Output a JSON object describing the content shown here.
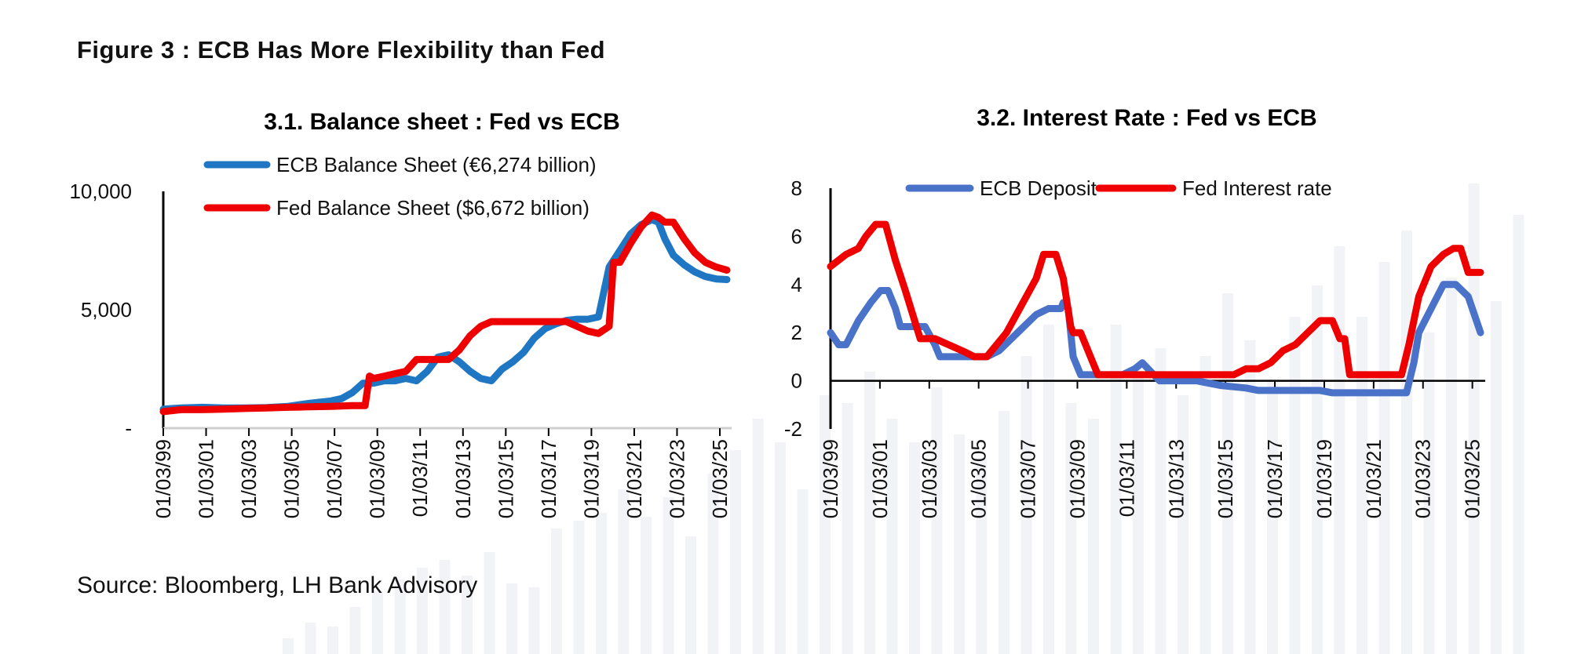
{
  "figure_title": "Figure 3 : ECB Has More Flexibility than Fed",
  "source": "Source: Bloomberg, LH Bank Advisory",
  "colors": {
    "ecb_balance": "#1f77c4",
    "fed": "#ee0000",
    "ecb_deposit": "#4a72c8",
    "watermark": "#f1f3f6"
  },
  "chart_data": [
    {
      "type": "line",
      "title": "3.1. Balance sheet  : Fed vs ECB",
      "x_ticks": [
        "01/03/99",
        "01/03/01",
        "01/03/03",
        "01/03/05",
        "01/03/07",
        "01/03/09",
        "01/03/11",
        "01/03/13",
        "01/03/15",
        "01/03/17",
        "01/03/19",
        "01/03/21",
        "01/03/23",
        "01/03/25"
      ],
      "y_ticks": [
        "10,000",
        "5,000",
        "-"
      ],
      "y_tick_values": [
        10000,
        5000,
        0
      ],
      "ylim": [
        0,
        10000
      ],
      "xlim": [
        1999.17,
        2025.5
      ],
      "legend_position": "top-left",
      "grid": false,
      "series": [
        {
          "name": "ECB Balance Sheet (€6,274 billion)",
          "color": "#1f77c4",
          "x": [
            1999.17,
            2000,
            2001,
            2002,
            2003,
            2004,
            2005,
            2006,
            2007,
            2007.5,
            2008,
            2008.5,
            2009,
            2009.5,
            2010,
            2010.5,
            2011,
            2011.5,
            2012,
            2012.5,
            2013,
            2013.5,
            2014,
            2014.5,
            2015,
            2015.5,
            2016,
            2016.5,
            2017,
            2017.5,
            2018,
            2018.5,
            2019,
            2019.5,
            2020,
            2020.5,
            2021,
            2021.5,
            2022,
            2022.3,
            2022.6,
            2023,
            2023.5,
            2024,
            2024.5,
            2025,
            2025.5
          ],
          "y": [
            800,
            850,
            880,
            850,
            850,
            870,
            920,
            1050,
            1150,
            1250,
            1500,
            1900,
            1900,
            2000,
            2000,
            2100,
            2000,
            2400,
            3000,
            3100,
            2800,
            2400,
            2100,
            2000,
            2500,
            2800,
            3200,
            3800,
            4200,
            4400,
            4550,
            4600,
            4600,
            4700,
            6800,
            7500,
            8200,
            8600,
            8800,
            8700,
            8000,
            7300,
            6900,
            6600,
            6400,
            6300,
            6274
          ]
        },
        {
          "name": "Fed Balance Sheet ($6,672 billion)",
          "color": "#ee0000",
          "x": [
            1999.17,
            2000,
            2001,
            2002,
            2003,
            2004,
            2005,
            2006,
            2007,
            2008,
            2008.6,
            2008.8,
            2009,
            2009.5,
            2010,
            2010.5,
            2011,
            2011.5,
            2012,
            2012.5,
            2013,
            2013.5,
            2014,
            2014.5,
            2015,
            2016,
            2017,
            2018,
            2019,
            2019.5,
            2020,
            2020.2,
            2020.5,
            2021,
            2021.5,
            2022,
            2022.3,
            2022.6,
            2023,
            2023.5,
            2024,
            2024.5,
            2025,
            2025.5
          ],
          "y": [
            700,
            780,
            780,
            800,
            830,
            850,
            880,
            900,
            920,
            950,
            950,
            2200,
            2100,
            2200,
            2300,
            2400,
            2900,
            2900,
            2900,
            2900,
            3300,
            3900,
            4300,
            4500,
            4500,
            4500,
            4500,
            4500,
            4100,
            4000,
            4300,
            7000,
            7000,
            7800,
            8500,
            9000,
            8900,
            8700,
            8700,
            8000,
            7400,
            7000,
            6800,
            6672
          ]
        }
      ]
    },
    {
      "type": "line",
      "title": "3.2. Interest Rate : Fed vs ECB",
      "x_ticks": [
        "01/03/99",
        "01/03/01",
        "01/03/03",
        "01/03/05",
        "01/03/07",
        "01/03/09",
        "01/03/11",
        "01/03/13",
        "01/03/15",
        "01/03/17",
        "01/03/19",
        "01/03/21",
        "01/03/23",
        "01/03/25"
      ],
      "y_ticks": [
        "8",
        "6",
        "4",
        "2",
        "0",
        "-2"
      ],
      "y_tick_values": [
        8,
        6,
        4,
        2,
        0,
        -2
      ],
      "ylim": [
        -2,
        8
      ],
      "xlim": [
        1999.17,
        2025.5
      ],
      "legend_position": "top",
      "grid": false,
      "series": [
        {
          "name": "ECB Deposit",
          "color": "#4a72c8",
          "x": [
            1999.17,
            1999.5,
            1999.8,
            2000.3,
            2000.8,
            2001.2,
            2001.5,
            2001.8,
            2002,
            2002.5,
            2003,
            2003.4,
            2003.6,
            2004,
            2005,
            2005.5,
            2006,
            2006.5,
            2007,
            2007.5,
            2008,
            2008.5,
            2008.6,
            2008.8,
            2009,
            2009.3,
            2009.6,
            2010,
            2011,
            2011.5,
            2011.8,
            2012.5,
            2013,
            2014,
            2014.5,
            2015,
            2016,
            2016.5,
            2017,
            2018,
            2019,
            2019.5,
            2020,
            2021,
            2022,
            2022.5,
            2022.8,
            2023,
            2023.5,
            2024,
            2024.5,
            2025,
            2025.5
          ],
          "y": [
            2,
            1.5,
            1.5,
            2.5,
            3.25,
            3.75,
            3.75,
            3,
            2.25,
            2.25,
            2.25,
            1.5,
            1,
            1,
            1,
            1,
            1.25,
            1.75,
            2.25,
            2.75,
            3,
            3,
            3.25,
            3,
            1,
            0.25,
            0.25,
            0.25,
            0.25,
            0.5,
            0.75,
            0,
            0,
            0,
            -0.1,
            -0.2,
            -0.3,
            -0.4,
            -0.4,
            -0.4,
            -0.4,
            -0.5,
            -0.5,
            -0.5,
            -0.5,
            -0.5,
            0.75,
            2,
            3,
            4,
            4,
            3.5,
            2
          ]
        },
        {
          "name": "Fed Interest rate",
          "color": "#ee0000",
          "x": [
            1999.17,
            1999.8,
            2000.3,
            2000.6,
            2001,
            2001.4,
            2001.8,
            2002.2,
            2002.8,
            2003,
            2003.4,
            2004.5,
            2005,
            2005.5,
            2006.3,
            2007.5,
            2007.8,
            2008,
            2008.3,
            2008.6,
            2008.9,
            2009,
            2009.3,
            2010,
            2011,
            2012,
            2013,
            2014,
            2015,
            2015.5,
            2016,
            2016.5,
            2017,
            2017.5,
            2018,
            2018.5,
            2019,
            2019.5,
            2019.8,
            2020,
            2020.2,
            2021,
            2022,
            2022.3,
            2022.6,
            2023,
            2023.5,
            2024,
            2024.4,
            2024.7,
            2025,
            2025.5
          ],
          "y": [
            4.75,
            5.25,
            5.5,
            6,
            6.5,
            6.5,
            5,
            3.75,
            1.75,
            1.75,
            1.75,
            1.25,
            1,
            1,
            2,
            4.25,
            5.25,
            5.25,
            5.25,
            4.25,
            2.25,
            2,
            2,
            0.25,
            0.25,
            0.25,
            0.25,
            0.25,
            0.25,
            0.25,
            0.5,
            0.5,
            0.75,
            1.25,
            1.5,
            2,
            2.5,
            2.5,
            1.75,
            1.75,
            0.25,
            0.25,
            0.25,
            0.25,
            1.5,
            3.5,
            4.75,
            5.25,
            5.5,
            5.5,
            4.5,
            4.5
          ]
        }
      ]
    }
  ]
}
